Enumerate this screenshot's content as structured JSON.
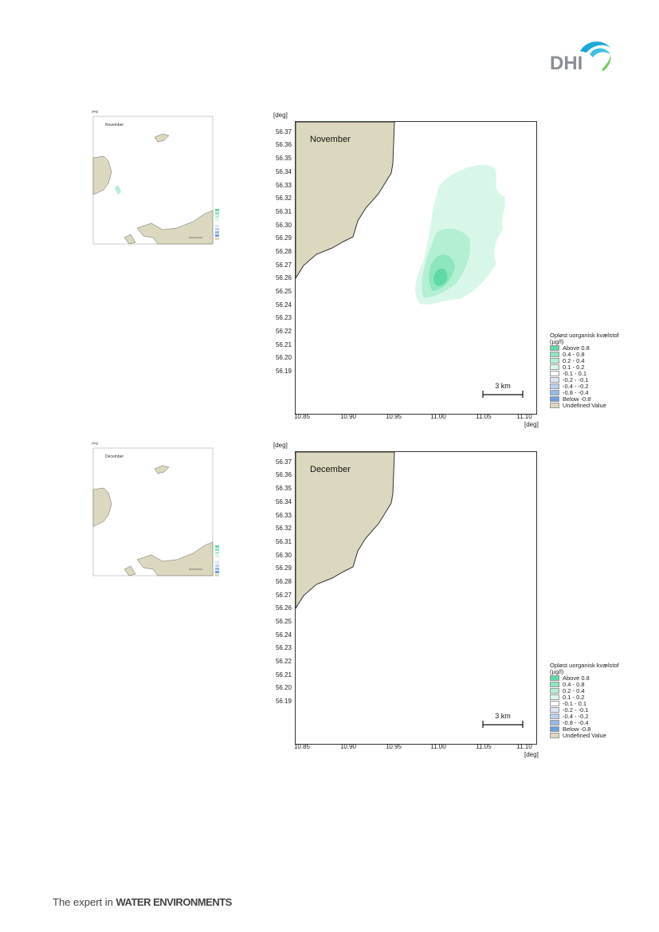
{
  "header": {
    "logo_text": "DHI",
    "logo_icon": "dhi-wave-icon"
  },
  "footer": {
    "tagline_prefix": "The expert in ",
    "tagline_bold": "WATER ENVIRONMENTS"
  },
  "maps": [
    {
      "month": "November",
      "unit_y": "[deg]",
      "unit_x": "[deg]",
      "y_ticks": [
        "56.37",
        "56.36",
        "56.35",
        "56.34",
        "56.33",
        "56.32",
        "56.31",
        "56.30",
        "56.29",
        "56.28",
        "56.27",
        "56.26",
        "56.25",
        "56.24",
        "56.23",
        "56.22",
        "56.21",
        "56.20",
        "56.19"
      ],
      "x_ticks": [
        "10.85",
        "10.90",
        "10.95",
        "11.00",
        "11.05",
        "11.10"
      ],
      "scale_label": "3 km",
      "legend": {
        "title_line1": "Opløst uorganisk kvælstof",
        "title_line2": "(µg/l)",
        "items": [
          "Above  0.8",
          "0.4 -  0.8",
          "0.2 -  0.4",
          "0.1 -  0.2",
          "-0.1 -  0.1",
          "-0.2 - -0.1",
          "-0.4 - -0.2",
          "-0.8 - -0.4",
          "Below -0.8",
          "Undefined Value"
        ],
        "colors": [
          "#5fd9a6",
          "#8de6bd",
          "#b3efd3",
          "#d9f7e9",
          "#ffffff",
          "#dbe7f7",
          "#b9d1f0",
          "#95b9e8",
          "#6e9fdf",
          "#dcd8bf"
        ]
      },
      "has_plume": true
    },
    {
      "month": "December",
      "unit_y": "[deg]",
      "unit_x": "[deg]",
      "y_ticks": [
        "56.37",
        "56.36",
        "56.35",
        "56.34",
        "56.33",
        "56.32",
        "56.31",
        "56.30",
        "56.29",
        "56.28",
        "56.27",
        "56.26",
        "56.25",
        "56.24",
        "56.23",
        "56.22",
        "56.21",
        "56.20",
        "56.19"
      ],
      "x_ticks": [
        "10.85",
        "10.90",
        "10.95",
        "11.00",
        "11.05",
        "11.10"
      ],
      "scale_label": "3 km",
      "legend": {
        "title_line1": "Opløst uorganisk kvælstof",
        "title_line2": "(µg/l)",
        "items": [
          "Above  0.8",
          "0.4 -  0.8",
          "0.2 -  0.4",
          "0.1 -  0.2",
          "-0.1 -  0.1",
          "-0.2 - -0.1",
          "-0.4 - -0.2",
          "-0.8 - -0.4",
          "Below -0.8",
          "Undefined Value"
        ],
        "colors": [
          "#5fd9a6",
          "#8de6bd",
          "#b3efd3",
          "#d9f7e9",
          "#ffffff",
          "#dbe7f7",
          "#b9d1f0",
          "#95b9e8",
          "#6e9fdf",
          "#dcd8bf"
        ]
      },
      "has_plume": false
    }
  ],
  "thumbnails": [
    {
      "month": "November",
      "unit": "[deg]"
    },
    {
      "month": "December",
      "unit": "[deg]"
    }
  ],
  "colors": {
    "land": "#dcd8bf",
    "coast": "#333333",
    "frame": "#333333"
  }
}
